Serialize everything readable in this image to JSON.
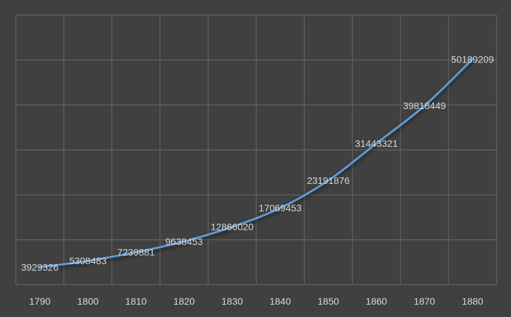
{
  "chart_data": {
    "type": "line",
    "title": "",
    "xlabel": "",
    "ylabel": "",
    "categories": [
      "1790",
      "1800",
      "1810",
      "1820",
      "1830",
      "1840",
      "1850",
      "1860",
      "1870",
      "1880"
    ],
    "series": [
      {
        "values": [
          3929326,
          5308483,
          7239881,
          9638453,
          12866020,
          17069453,
          23191876,
          31443321,
          39818449,
          50189209
        ],
        "color": "#5b9bd5"
      }
    ],
    "ylim": [
      0,
      60000000
    ],
    "grid": true,
    "legend": "none",
    "data_labels": true,
    "smooth": true
  }
}
